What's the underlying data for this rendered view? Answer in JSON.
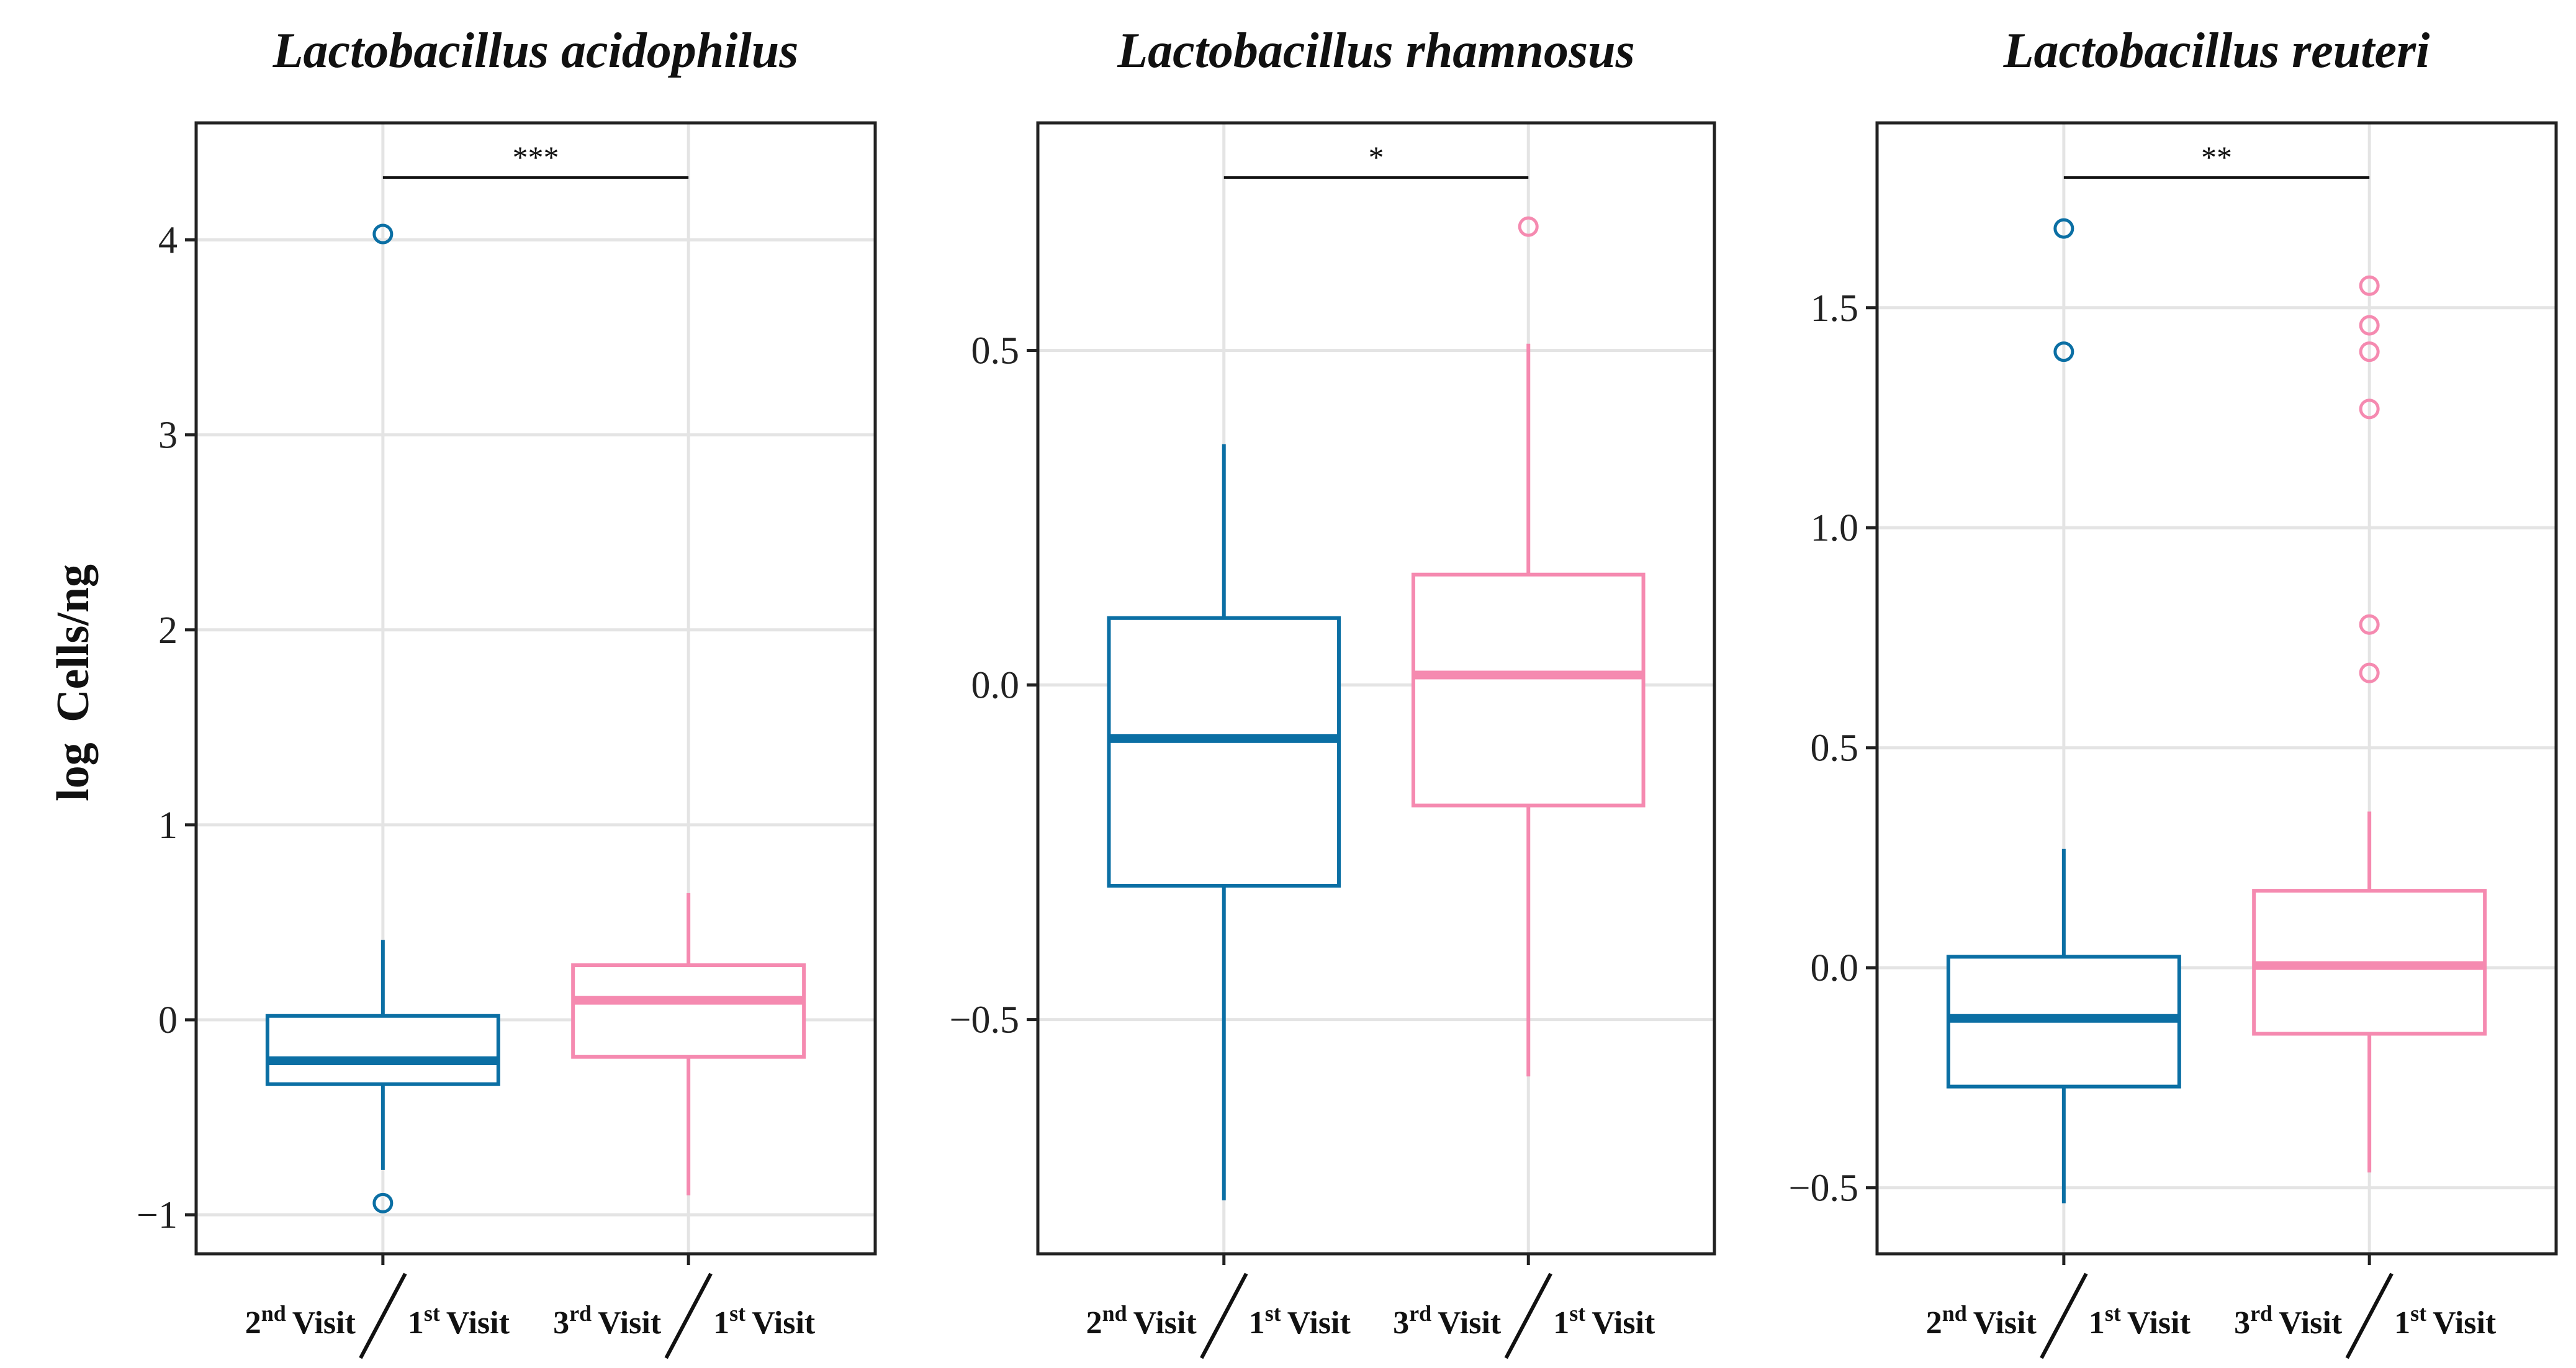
{
  "y_axis_label_prefix": "log",
  "y_axis_label_main": "Cells/ng",
  "colors": {
    "series_1": "#0B6FA4",
    "series_2": "#F58AB0",
    "grid": "#e4e4e4",
    "frame": "#222222"
  },
  "chart_data": [
    {
      "type": "box",
      "title": "Lactobacillus acidophilus",
      "ylabel": "log Cells/ng",
      "ylim": [
        -1.2,
        4.6
      ],
      "yticks": [
        -1,
        0,
        1,
        2,
        3,
        4
      ],
      "ytick_labels": [
        "−1",
        "0",
        "1",
        "2",
        "3",
        "4"
      ],
      "significance": "***",
      "categories": [
        {
          "num": "2",
          "num_sup": "nd",
          "den": "1",
          "den_sup": "st",
          "word": "Visit"
        },
        {
          "num": "3",
          "num_sup": "rd",
          "den": "1",
          "den_sup": "st",
          "word": "Visit"
        }
      ],
      "boxes": [
        {
          "color": "#0B6FA4",
          "q1": -0.33,
          "median": -0.21,
          "q3": 0.02,
          "whisker_low": -0.77,
          "whisker_high": 0.41,
          "outliers": [
            4.03,
            -0.94
          ]
        },
        {
          "color": "#F58AB0",
          "q1": -0.19,
          "median": 0.1,
          "q3": 0.28,
          "whisker_low": -0.9,
          "whisker_high": 0.65,
          "outliers": []
        }
      ]
    },
    {
      "type": "box",
      "title": "Lactobacillus rhamnosus",
      "ylabel": "log Cells/ng",
      "ylim": [
        -0.85,
        0.84
      ],
      "yticks": [
        -0.5,
        0.0,
        0.5
      ],
      "ytick_labels": [
        "−0.5",
        "0.0",
        "0.5"
      ],
      "significance": "*",
      "categories": [
        {
          "num": "2",
          "num_sup": "nd",
          "den": "1",
          "den_sup": "st",
          "word": "Visit"
        },
        {
          "num": "3",
          "num_sup": "rd",
          "den": "1",
          "den_sup": "st",
          "word": "Visit"
        }
      ],
      "boxes": [
        {
          "color": "#0B6FA4",
          "q1": -0.3,
          "median": -0.08,
          "q3": 0.1,
          "whisker_low": -0.77,
          "whisker_high": 0.36,
          "outliers": []
        },
        {
          "color": "#F58AB0",
          "q1": -0.18,
          "median": 0.015,
          "q3": 0.165,
          "whisker_low": -0.585,
          "whisker_high": 0.51,
          "outliers": [
            0.685
          ]
        }
      ]
    },
    {
      "type": "box",
      "title": "Lactobacillus reuteri",
      "ylabel": "log Cells/ng",
      "ylim": [
        -0.65,
        1.92
      ],
      "yticks": [
        -0.5,
        0.0,
        0.5,
        1.0,
        1.5
      ],
      "ytick_labels": [
        "−0.5",
        "0.0",
        "0.5",
        "1.0",
        "1.5"
      ],
      "significance": "**",
      "categories": [
        {
          "num": "2",
          "num_sup": "nd",
          "den": "1",
          "den_sup": "st",
          "word": "Visit"
        },
        {
          "num": "3",
          "num_sup": "rd",
          "den": "1",
          "den_sup": "st",
          "word": "Visit"
        }
      ],
      "boxes": [
        {
          "color": "#0B6FA4",
          "q1": -0.27,
          "median": -0.115,
          "q3": 0.025,
          "whisker_low": -0.535,
          "whisker_high": 0.27,
          "outliers": [
            1.68,
            1.4
          ]
        },
        {
          "color": "#F58AB0",
          "q1": -0.15,
          "median": 0.005,
          "q3": 0.175,
          "whisker_low": -0.465,
          "whisker_high": 0.355,
          "outliers": [
            1.55,
            1.46,
            1.4,
            1.27,
            0.78,
            0.67
          ]
        }
      ]
    }
  ]
}
